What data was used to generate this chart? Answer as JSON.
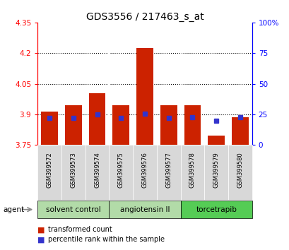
{
  "title": "GDS3556 / 217463_s_at",
  "samples": [
    "GSM399572",
    "GSM399573",
    "GSM399574",
    "GSM399575",
    "GSM399576",
    "GSM399577",
    "GSM399578",
    "GSM399579",
    "GSM399580"
  ],
  "red_values": [
    3.915,
    3.945,
    4.005,
    3.945,
    4.225,
    3.945,
    3.945,
    3.795,
    3.885
  ],
  "blue_values": [
    3.884,
    3.883,
    3.9,
    3.884,
    3.905,
    3.884,
    3.886,
    3.87,
    3.885
  ],
  "y_min": 3.75,
  "y_max": 4.35,
  "y_ticks_left": [
    3.75,
    3.9,
    4.05,
    4.2,
    4.35
  ],
  "y_ticks_right": [
    0,
    25,
    50,
    75,
    100
  ],
  "groups": [
    {
      "label": "solvent control",
      "start": 0,
      "end": 3,
      "color": "#b2dba8"
    },
    {
      "label": "angiotensin II",
      "start": 3,
      "end": 6,
      "color": "#b2dba8"
    },
    {
      "label": "torcetrapib",
      "start": 6,
      "end": 9,
      "color": "#55cc55"
    }
  ],
  "bar_color": "#cc2200",
  "blue_color": "#3333cc",
  "bar_width": 0.7,
  "title_fontsize": 10,
  "tick_fontsize": 7.5,
  "sample_fontsize": 6,
  "group_fontsize": 7.5,
  "legend_fontsize": 7
}
